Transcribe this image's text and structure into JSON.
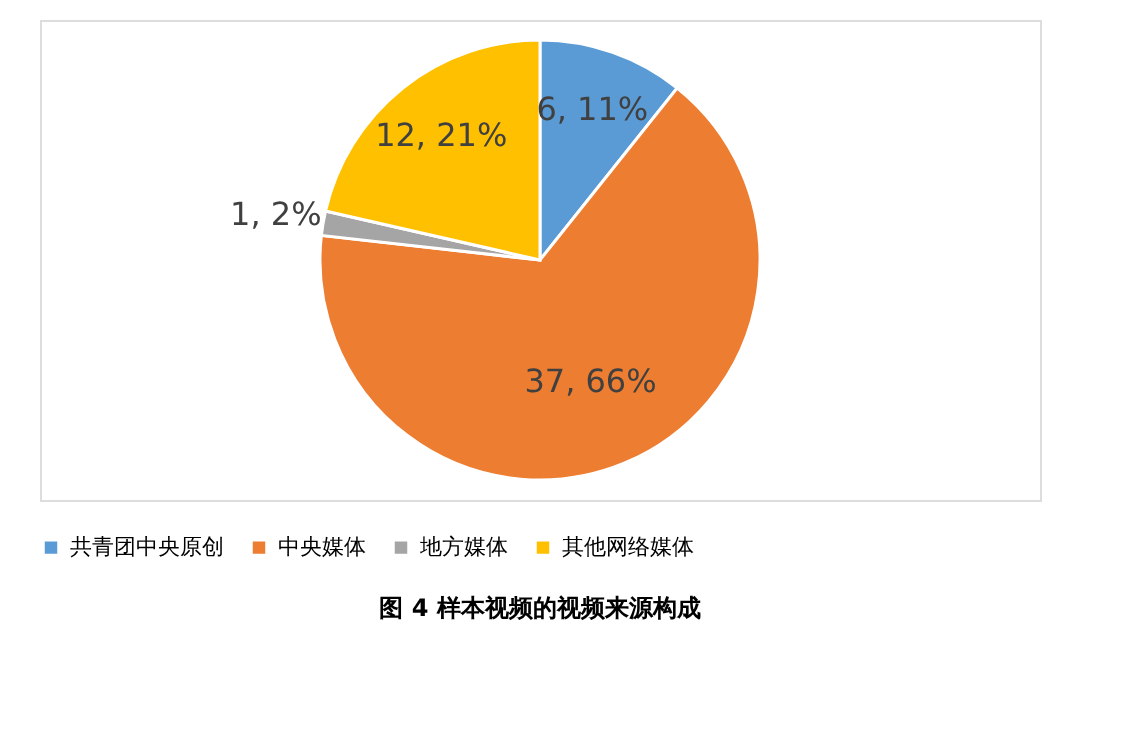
{
  "chart_data": {
    "type": "pie",
    "title": "图 4 样本视频的视频来源构成",
    "categories": [
      "共青团中央原创",
      "中央媒体",
      "地方媒体",
      "其他网络媒体"
    ],
    "values": [
      6,
      37,
      1,
      12
    ],
    "colors": [
      "#5b9bd5",
      "#ed7d31",
      "#a5a5a5",
      "#ffc000"
    ],
    "value_labels": [
      "6, 11%",
      "37, 66%",
      "1, 2%",
      "12, 21%"
    ],
    "legend": "bottom"
  }
}
